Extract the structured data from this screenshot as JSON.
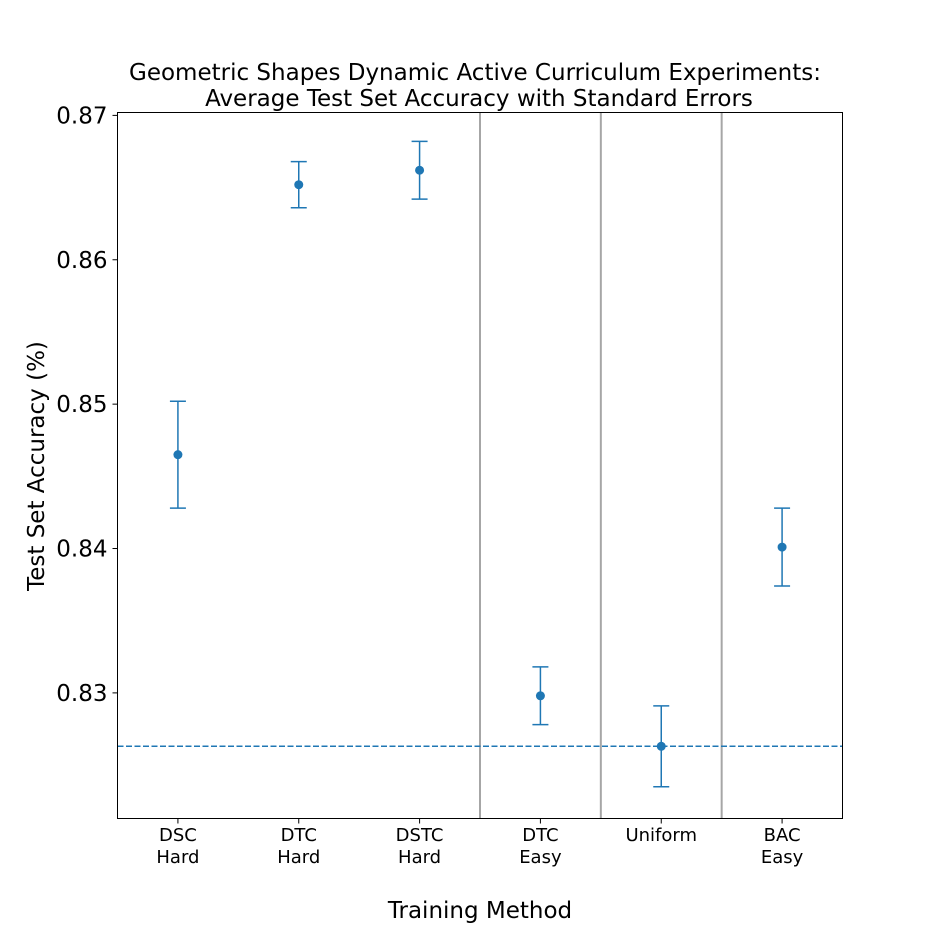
{
  "chart_data": {
    "type": "scatter",
    "title_line1": "Geometric Shapes Dynamic Active Curriculum Experiments:",
    "title_line2": "Average Test Set Accuracy with Standard Errors",
    "xlabel": "Training Method",
    "ylabel": "Test Set Accuracy (%)",
    "ylim": [
      0.8213,
      0.8702
    ],
    "yticks": [
      0.83,
      0.84,
      0.85,
      0.86,
      0.87
    ],
    "ytick_labels": [
      "0.83",
      "0.84",
      "0.85",
      "0.86",
      "0.87"
    ],
    "categories": [
      {
        "line1": "DSC",
        "line2": "Hard"
      },
      {
        "line1": "DTC",
        "line2": "Hard"
      },
      {
        "line1": "DSTC",
        "line2": "Hard"
      },
      {
        "line1": "DTC",
        "line2": "Easy"
      },
      {
        "line1": "Uniform",
        "line2": ""
      },
      {
        "line1": "BAC",
        "line2": "Easy"
      }
    ],
    "series": [
      {
        "means": [
          0.8465,
          0.8652,
          0.8662,
          0.8298,
          0.8263,
          0.8401
        ],
        "errors": [
          0.0037,
          0.0016,
          0.002,
          0.002,
          0.0028,
          0.0027
        ]
      }
    ],
    "baseline": 0.8263,
    "group_separators_after_index": [
      2,
      3,
      4
    ],
    "grid": false,
    "colors": {
      "series": "#1f77b4",
      "separator": "#a6a6a6",
      "axes": "#000000"
    }
  }
}
